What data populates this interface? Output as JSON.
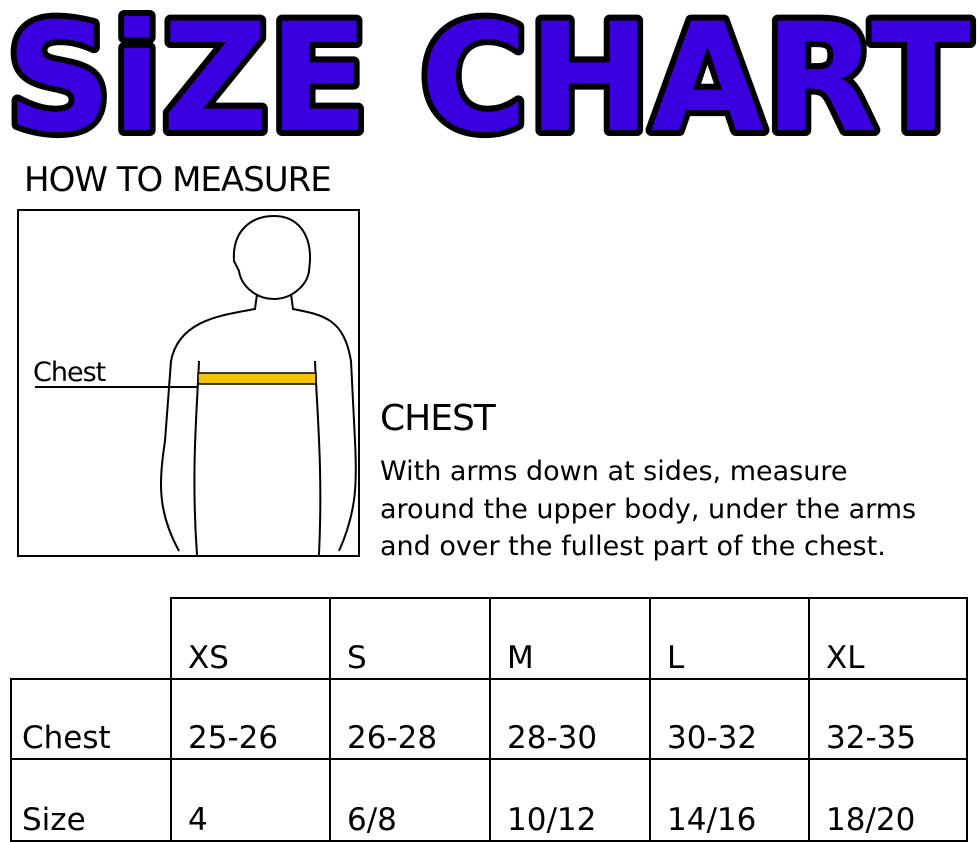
{
  "title": "SiZE CHART",
  "colors": {
    "title_fill": "#3a00e0",
    "title_outline": "#000000",
    "tape": "#f5c400"
  },
  "how_to": {
    "heading": "HOW TO MEASURE",
    "figure_label": "Chest"
  },
  "chest": {
    "heading": "CHEST",
    "lines": [
      "With arms down at sides, measure",
      "around the upper body, under the arms",
      "and over the fullest part of the chest."
    ]
  },
  "table": {
    "headers": [
      "XS",
      "S",
      "M",
      "L",
      "XL"
    ],
    "rows": [
      {
        "label": "Chest",
        "values": [
          "25-26",
          "26-28",
          "28-30",
          "30-32",
          "32-35"
        ]
      },
      {
        "label": "Size",
        "values": [
          "4",
          "6/8",
          "10/12",
          "14/16",
          "18/20"
        ]
      }
    ]
  }
}
